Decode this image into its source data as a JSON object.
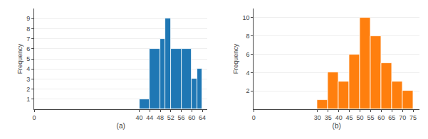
{
  "chart_data": [
    {
      "type": "histogram",
      "bins": [
        40,
        44,
        48,
        50,
        52,
        56,
        60,
        62,
        64
      ],
      "values": [
        1,
        6,
        7,
        9,
        6,
        6,
        3,
        4
      ],
      "xlim": [
        0,
        66
      ],
      "ylim": [
        0,
        10
      ],
      "xticks": [
        0,
        40,
        44,
        48,
        52,
        56,
        60,
        64
      ],
      "yticks": [
        1,
        2,
        3,
        4,
        5,
        6,
        7,
        8,
        9
      ],
      "xlabel": "(a)",
      "ylabel": "Frequency",
      "grid": "y"
    },
    {
      "type": "histogram",
      "bins": [
        30,
        35,
        40,
        45,
        50,
        55,
        60,
        65,
        70,
        75
      ],
      "values": [
        1,
        4,
        3,
        6,
        10,
        8,
        5,
        3,
        2
      ],
      "xlim": [
        0,
        78
      ],
      "ylim": [
        0,
        11
      ],
      "xticks": [
        0,
        30,
        35,
        40,
        45,
        50,
        55,
        60,
        65,
        70,
        75
      ],
      "yticks": [
        2,
        4,
        6,
        8,
        10
      ],
      "xlabel": "(b)",
      "ylabel": "Frequency",
      "grid": "y"
    }
  ]
}
